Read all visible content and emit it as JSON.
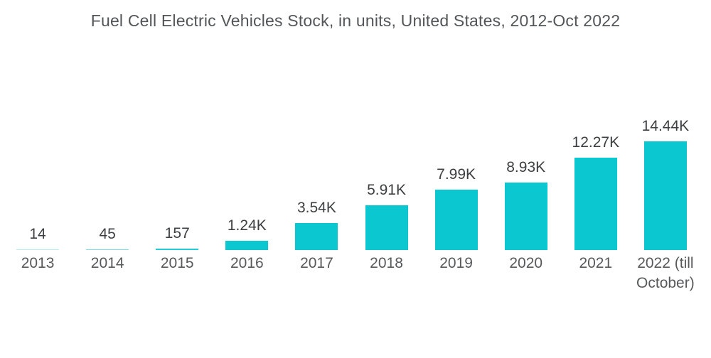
{
  "page": {
    "background_color": "#ffffff"
  },
  "chart_data": {
    "type": "bar",
    "title": "Fuel Cell Electric Vehicles Stock, in units, United States, 2012-Oct 2022",
    "categories": [
      "2013",
      "2014",
      "2015",
      "2016",
      "2017",
      "2018",
      "2019",
      "2020",
      "2021",
      "2022 (till October)"
    ],
    "values": [
      14,
      45,
      157,
      1240,
      3540,
      5910,
      7990,
      8930,
      12270,
      14440
    ],
    "value_labels": [
      "14",
      "45",
      "157",
      "1.24K",
      "3.54K",
      "5.91K",
      "7.99K",
      "8.93K",
      "12.27K",
      "14.44K"
    ],
    "unit": "units",
    "xlabel": "",
    "ylabel": "",
    "ylim": [
      0,
      15000
    ],
    "grid": false,
    "legend_position": "none",
    "bar_color": "#0bc8d0",
    "title_color": "#535659",
    "value_label_color": "#3d3f41",
    "axis_label_color": "#58595b"
  }
}
